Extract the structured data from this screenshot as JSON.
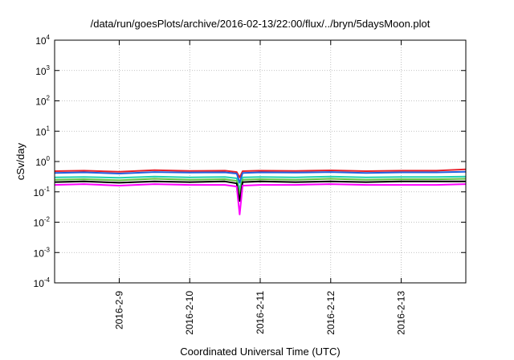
{
  "chart_data": {
    "type": "line",
    "title": "/data/run/goesPlots/archive/2016-02-13/22:00/flux/../bryn/5daysMoon.plot",
    "xlabel": "Coordinated Universal Time (UTC)",
    "ylabel": "cSv/day",
    "y_scale": "log",
    "ylim": [
      0.0001,
      10000
    ],
    "xlim": [
      "2016-02-08 02:00",
      "2016-02-13 22:00"
    ],
    "x_ticks": [
      "2016-2-9",
      "2016-2-10",
      "2016-2-11",
      "2016-2-12",
      "2016-2-13"
    ],
    "y_ticks": [
      {
        "base": "10",
        "exp": "-4"
      },
      {
        "base": "10",
        "exp": "-3"
      },
      {
        "base": "10",
        "exp": "-2"
      },
      {
        "base": "10",
        "exp": "-1"
      },
      {
        "base": "10",
        "exp": "0"
      },
      {
        "base": "10",
        "exp": "1"
      },
      {
        "base": "10",
        "exp": "2"
      },
      {
        "base": "10",
        "exp": "3"
      },
      {
        "base": "10",
        "exp": "4"
      }
    ],
    "grid": true,
    "legend": "none",
    "series": [
      {
        "color": "#e8202a",
        "x": [
          "2016-02-08 02:00",
          "2016-02-08 12:00",
          "2016-02-09 00:00",
          "2016-02-09 12:00",
          "2016-02-10 00:00",
          "2016-02-10 12:00",
          "2016-02-10 16:00",
          "2016-02-10 17:00",
          "2016-02-10 18:00",
          "2016-02-11 00:00",
          "2016-02-11 12:00",
          "2016-02-12 00:00",
          "2016-02-12 12:00",
          "2016-02-13 00:00",
          "2016-02-13 12:00",
          "2016-02-13 22:00"
        ],
        "values": [
          0.48,
          0.5,
          0.46,
          0.52,
          0.49,
          0.5,
          0.45,
          0.3,
          0.48,
          0.5,
          0.49,
          0.51,
          0.48,
          0.5,
          0.5,
          0.55
        ]
      },
      {
        "color": "#2060e0",
        "x": [
          "2016-02-08 02:00",
          "2016-02-08 12:00",
          "2016-02-09 00:00",
          "2016-02-09 12:00",
          "2016-02-10 00:00",
          "2016-02-10 12:00",
          "2016-02-10 16:00",
          "2016-02-10 17:00",
          "2016-02-10 18:00",
          "2016-02-11 00:00",
          "2016-02-11 12:00",
          "2016-02-12 00:00",
          "2016-02-12 12:00",
          "2016-02-13 00:00",
          "2016-02-13 12:00",
          "2016-02-13 22:00"
        ],
        "values": [
          0.42,
          0.44,
          0.4,
          0.45,
          0.43,
          0.44,
          0.4,
          0.2,
          0.42,
          0.44,
          0.43,
          0.45,
          0.42,
          0.44,
          0.44,
          0.46
        ]
      },
      {
        "color": "#20d0b0",
        "x": [
          "2016-02-08 02:00",
          "2016-02-08 12:00",
          "2016-02-09 00:00",
          "2016-02-09 12:00",
          "2016-02-10 00:00",
          "2016-02-10 12:00",
          "2016-02-10 16:00",
          "2016-02-10 17:00",
          "2016-02-10 18:00",
          "2016-02-11 00:00",
          "2016-02-11 12:00",
          "2016-02-12 00:00",
          "2016-02-12 12:00",
          "2016-02-13 00:00",
          "2016-02-13 12:00",
          "2016-02-13 22:00"
        ],
        "values": [
          0.3,
          0.31,
          0.29,
          0.32,
          0.3,
          0.31,
          0.28,
          0.12,
          0.3,
          0.31,
          0.3,
          0.32,
          0.3,
          0.31,
          0.31,
          0.32
        ]
      },
      {
        "color": "#60c040",
        "x": [
          "2016-02-08 02:00",
          "2016-02-08 12:00",
          "2016-02-09 00:00",
          "2016-02-09 12:00",
          "2016-02-10 00:00",
          "2016-02-10 12:00",
          "2016-02-10 16:00",
          "2016-02-10 17:00",
          "2016-02-10 18:00",
          "2016-02-11 00:00",
          "2016-02-11 12:00",
          "2016-02-12 00:00",
          "2016-02-12 12:00",
          "2016-02-13 00:00",
          "2016-02-13 12:00",
          "2016-02-13 22:00"
        ],
        "values": [
          0.25,
          0.26,
          0.24,
          0.27,
          0.25,
          0.26,
          0.23,
          0.08,
          0.25,
          0.26,
          0.25,
          0.27,
          0.25,
          0.26,
          0.26,
          0.27
        ]
      },
      {
        "color": "#000000",
        "x": [
          "2016-02-08 02:00",
          "2016-02-08 12:00",
          "2016-02-09 00:00",
          "2016-02-09 12:00",
          "2016-02-10 00:00",
          "2016-02-10 12:00",
          "2016-02-10 16:00",
          "2016-02-10 17:00",
          "2016-02-10 18:00",
          "2016-02-11 00:00",
          "2016-02-11 12:00",
          "2016-02-12 00:00",
          "2016-02-12 12:00",
          "2016-02-13 00:00",
          "2016-02-13 12:00",
          "2016-02-13 22:00"
        ],
        "values": [
          0.21,
          0.22,
          0.2,
          0.22,
          0.21,
          0.22,
          0.19,
          0.05,
          0.21,
          0.22,
          0.21,
          0.22,
          0.21,
          0.22,
          0.22,
          0.22
        ]
      },
      {
        "color": "#ff00ff",
        "x": [
          "2016-02-08 02:00",
          "2016-02-08 12:00",
          "2016-02-09 00:00",
          "2016-02-09 12:00",
          "2016-02-10 00:00",
          "2016-02-10 12:00",
          "2016-02-10 16:00",
          "2016-02-10 17:00",
          "2016-02-10 18:00",
          "2016-02-11 00:00",
          "2016-02-11 12:00",
          "2016-02-12 00:00",
          "2016-02-12 12:00",
          "2016-02-13 00:00",
          "2016-02-13 12:00",
          "2016-02-13 22:00"
        ],
        "values": [
          0.17,
          0.18,
          0.16,
          0.18,
          0.17,
          0.17,
          0.15,
          0.018,
          0.16,
          0.17,
          0.17,
          0.18,
          0.17,
          0.17,
          0.17,
          0.18
        ]
      }
    ]
  }
}
